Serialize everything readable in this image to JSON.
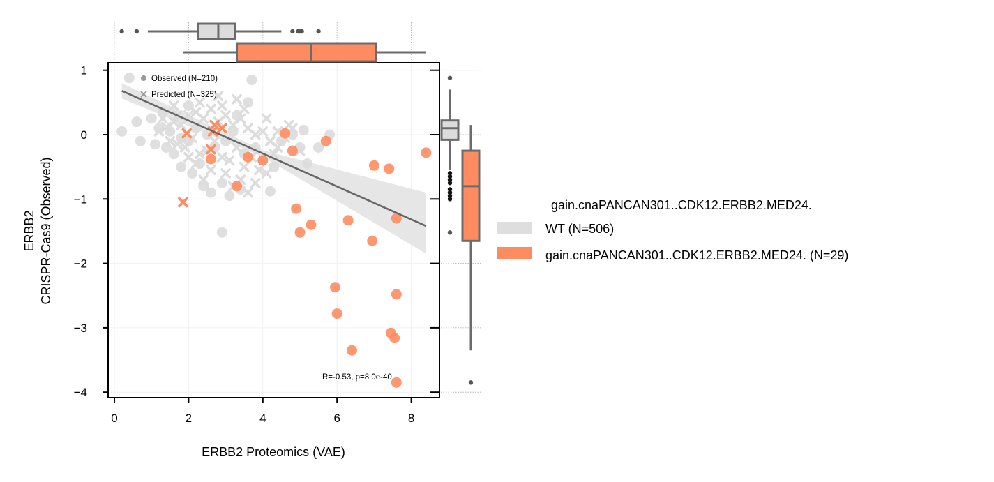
{
  "chart_data": {
    "type": "scatter",
    "xlabel": "ERBB2 Proteomics (VAE)",
    "ylabel_line1": "ERBB2",
    "ylabel_line2": "CRISPR-Cas9 (Observed)",
    "xlim": [
      -0.2,
      8.8
    ],
    "ylim": [
      -4.1,
      1.1
    ],
    "xticks": [
      0,
      2,
      4,
      6,
      8
    ],
    "yticks": [
      1,
      0,
      -1,
      -2,
      -3,
      -4
    ],
    "grid": true,
    "marker_legend": {
      "observed": "Observed (N=210)",
      "predicted": "Predicted (N=325)"
    },
    "annotation": "R=-0.53, p=8.0e-40",
    "legend": {
      "title": "gain.cnaPANCAN301..CDK12.ERBB2.MED24.",
      "placement": "right",
      "entries": [
        {
          "label": "WT (N=506)",
          "color": "#dedede"
        },
        {
          "label": "gain.cnaPANCAN301..CDK12.ERBB2.MED24. (N=29)",
          "color": "#ff8c61"
        }
      ]
    },
    "colors": {
      "wt": "#dcdcdc",
      "gain": "#ff8c61",
      "regression": "#666666",
      "ci_band": "#e6e6e6",
      "box_edge": "#6b6b6b"
    },
    "regression": {
      "x": [
        0.2,
        8.4
      ],
      "y": [
        0.68,
        -1.42
      ],
      "ci_lower_at_end": -1.85,
      "ci_upper_at_end": -0.9
    },
    "series": [
      {
        "name": "WT (N=506)",
        "observed": [
          [
            0.4,
            0.88
          ],
          [
            0.2,
            0.05
          ],
          [
            0.6,
            0.2
          ],
          [
            1.0,
            0.25
          ],
          [
            1.2,
            0.1
          ],
          [
            1.5,
            0.05
          ],
          [
            1.8,
            -0.05
          ],
          [
            2.0,
            -0.1
          ],
          [
            2.2,
            0.1
          ],
          [
            2.5,
            0.0
          ],
          [
            2.7,
            -0.2
          ],
          [
            3.0,
            -0.1
          ],
          [
            3.2,
            0.05
          ],
          [
            3.5,
            -0.3
          ],
          [
            3.8,
            -0.2
          ],
          [
            4.0,
            -0.4
          ],
          [
            4.3,
            -0.5
          ],
          [
            4.5,
            -0.1
          ],
          [
            4.8,
            0.0
          ],
          [
            5.0,
            -0.2
          ],
          [
            5.2,
            -0.45
          ],
          [
            5.5,
            -0.2
          ],
          [
            5.8,
            0.0
          ],
          [
            1.8,
            -0.5
          ],
          [
            2.1,
            -0.6
          ],
          [
            2.4,
            -0.8
          ],
          [
            2.6,
            -0.9
          ],
          [
            2.9,
            -0.75
          ],
          [
            3.1,
            -0.95
          ],
          [
            3.4,
            -0.85
          ],
          [
            2.9,
            -1.52
          ],
          [
            4.2,
            -0.88
          ],
          [
            2.3,
            -0.45
          ],
          [
            1.6,
            -0.3
          ],
          [
            1.4,
            -0.2
          ],
          [
            3.6,
            0.5
          ],
          [
            3.3,
            0.3
          ],
          [
            1.1,
            -0.15
          ],
          [
            0.7,
            -0.1
          ],
          [
            5.1,
            0.07
          ],
          [
            2.0,
            0.45
          ],
          [
            1.3,
            0.35
          ],
          [
            3.7,
            0.85
          ]
        ],
        "predicted": [
          [
            1.2,
            0.05
          ],
          [
            1.4,
            0.12
          ],
          [
            1.6,
            0.2
          ],
          [
            1.8,
            0.15
          ],
          [
            2.0,
            0.3
          ],
          [
            2.2,
            0.35
          ],
          [
            2.4,
            0.25
          ],
          [
            2.6,
            0.4
          ],
          [
            2.8,
            0.2
          ],
          [
            3.0,
            0.3
          ],
          [
            3.2,
            0.15
          ],
          [
            3.4,
            0.25
          ],
          [
            3.6,
            0.1
          ],
          [
            3.8,
            0.0
          ],
          [
            4.0,
            0.05
          ],
          [
            4.2,
            -0.1
          ],
          [
            4.4,
            -0.2
          ],
          [
            4.6,
            -0.05
          ],
          [
            4.8,
            0.1
          ],
          [
            5.0,
            -0.25
          ],
          [
            1.5,
            -0.1
          ],
          [
            1.7,
            -0.15
          ],
          [
            1.9,
            -0.2
          ],
          [
            2.1,
            -0.05
          ],
          [
            2.3,
            -0.3
          ],
          [
            2.5,
            -0.25
          ],
          [
            2.7,
            -0.1
          ],
          [
            2.9,
            -0.35
          ],
          [
            3.1,
            -0.4
          ],
          [
            3.3,
            -0.2
          ],
          [
            3.5,
            -0.5
          ],
          [
            3.7,
            -0.35
          ],
          [
            3.9,
            -0.55
          ],
          [
            4.1,
            -0.6
          ],
          [
            2.2,
            -0.45
          ],
          [
            2.6,
            -0.55
          ],
          [
            3.0,
            -0.6
          ],
          [
            3.4,
            -0.7
          ],
          [
            3.8,
            -0.75
          ],
          [
            1.3,
            0.25
          ],
          [
            1.7,
            0.3
          ],
          [
            2.3,
            0.5
          ],
          [
            2.9,
            0.45
          ],
          [
            3.5,
            0.4
          ],
          [
            4.1,
            0.25
          ],
          [
            4.4,
            0.05
          ],
          [
            4.7,
            0.15
          ],
          [
            3.2,
            -0.8
          ],
          [
            3.6,
            -0.9
          ],
          [
            2.4,
            -0.7
          ],
          [
            2.0,
            -0.35
          ],
          [
            1.6,
            0.45
          ],
          [
            2.8,
            0.6
          ],
          [
            3.3,
            0.55
          ],
          [
            4.3,
            -0.3
          ]
        ]
      },
      {
        "name": "gain.cnaPANCAN301..CDK12.ERBB2.MED24. (N=29)",
        "observed": [
          [
            4.6,
            0.02
          ],
          [
            5.7,
            -0.1
          ],
          [
            4.8,
            -0.25
          ],
          [
            8.4,
            -0.28
          ],
          [
            7.0,
            -0.48
          ],
          [
            7.4,
            -0.53
          ],
          [
            3.6,
            -0.35
          ],
          [
            4.0,
            -0.4
          ],
          [
            2.6,
            -0.38
          ],
          [
            3.3,
            -0.8
          ],
          [
            4.9,
            -1.15
          ],
          [
            7.6,
            -1.3
          ],
          [
            5.3,
            -1.4
          ],
          [
            6.3,
            -1.33
          ],
          [
            5.0,
            -1.52
          ],
          [
            6.95,
            -1.65
          ],
          [
            5.95,
            -2.37
          ],
          [
            7.6,
            -2.48
          ],
          [
            6.0,
            -2.78
          ],
          [
            7.45,
            -3.08
          ],
          [
            7.55,
            -3.16
          ],
          [
            6.4,
            -3.35
          ],
          [
            7.6,
            -3.85
          ]
        ],
        "predicted": [
          [
            1.95,
            0.02
          ],
          [
            2.7,
            0.15
          ],
          [
            2.9,
            0.1
          ],
          [
            2.6,
            -0.23
          ],
          [
            1.85,
            -1.05
          ],
          [
            2.65,
            0.05
          ]
        ]
      }
    ],
    "top_boxplots": [
      {
        "name": "WT (N=506)",
        "q1": 2.25,
        "median": 2.8,
        "q3": 3.25,
        "whisker_low": 0.9,
        "whisker_high": 4.5,
        "outliers": [
          0.2,
          0.6,
          4.8,
          4.95,
          5.0,
          5.05,
          5.5
        ]
      },
      {
        "name": "gain.cnaPANCAN301..CDK12.ERBB2.MED24. (N=29)",
        "q1": 3.3,
        "median": 5.3,
        "q3": 7.05,
        "whisker_low": 1.85,
        "whisker_high": 8.4,
        "outliers": []
      }
    ],
    "right_boxplots": [
      {
        "name": "WT (N=506)",
        "q1": -0.08,
        "median": 0.1,
        "q3": 0.22,
        "whisker_low": -0.55,
        "whisker_high": 0.7,
        "outliers": [
          0.88,
          -0.6,
          -0.65,
          -0.7,
          -0.75,
          -0.85,
          -0.9,
          -0.95,
          -1.0,
          -1.52
        ]
      },
      {
        "name": "gain.cnaPANCAN301..CDK12.ERBB2.MED24. (N=29)",
        "q1": -1.65,
        "median": -0.8,
        "q3": -0.25,
        "whisker_low": -3.35,
        "whisker_high": 0.15,
        "outliers": [
          -3.85
        ]
      }
    ]
  }
}
